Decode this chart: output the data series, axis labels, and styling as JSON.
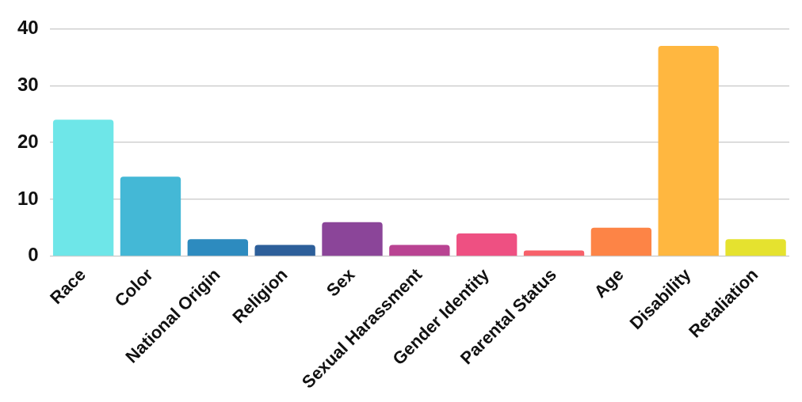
{
  "chart_data": {
    "type": "bar",
    "categories": [
      "Race",
      "Color",
      "National Origin",
      "Religion",
      "Sex",
      "Sexual Harassment",
      "Gender Identity",
      "Parental Status",
      "Age",
      "Disability",
      "Retaliation"
    ],
    "values": [
      24,
      14,
      3,
      2,
      6,
      2,
      4,
      1,
      5,
      37,
      3
    ],
    "colors": [
      "#6ee6e8",
      "#44b8d6",
      "#2d8bbf",
      "#2d5f9a",
      "#8b4599",
      "#b94392",
      "#ee5082",
      "#f7616a",
      "#fd8446",
      "#ffb740",
      "#e5e22f"
    ],
    "ylim": [
      0,
      40
    ],
    "yticks": [
      0,
      10,
      20,
      30,
      40
    ],
    "grid": "y",
    "legend": false
  }
}
